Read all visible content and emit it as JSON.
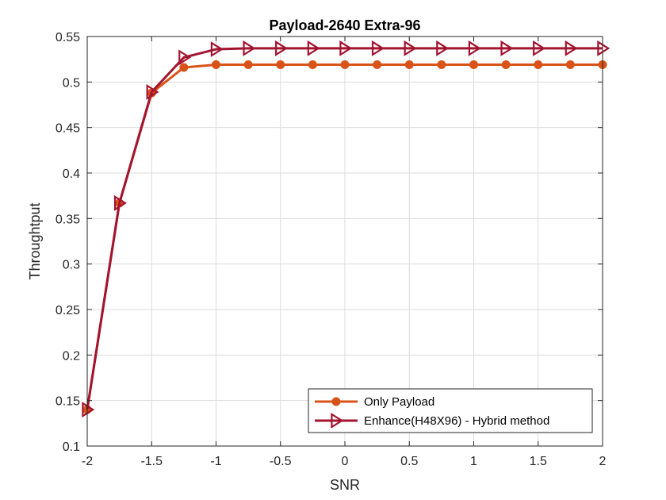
{
  "chart_data": {
    "type": "line",
    "title": "Payload-2640 Extra-96",
    "xlabel": "SNR",
    "ylabel": "Throughtput",
    "xlim": [
      -2,
      2
    ],
    "ylim": [
      0.1,
      0.55
    ],
    "xticks": [
      -2,
      -1.5,
      -1,
      -0.5,
      0,
      0.5,
      1,
      1.5,
      2
    ],
    "xtick_labels": [
      "-2",
      "-1.5",
      "-1",
      "-0.5",
      "0",
      "0.5",
      "1",
      "1.5",
      "2"
    ],
    "yticks": [
      0.1,
      0.15,
      0.2,
      0.25,
      0.3,
      0.35,
      0.4,
      0.45,
      0.5,
      0.55
    ],
    "ytick_labels": [
      "0.1",
      "0.15",
      "0.2",
      "0.25",
      "0.3",
      "0.35",
      "0.4",
      "0.45",
      "0.5",
      "0.55"
    ],
    "grid": true,
    "legend_position": "bottom-right",
    "x": [
      -2,
      -1.75,
      -1.5,
      -1.25,
      -1,
      -0.75,
      -0.5,
      -0.25,
      0,
      0.25,
      0.5,
      0.75,
      1,
      1.25,
      1.5,
      1.75,
      2
    ],
    "series": [
      {
        "name": "Only Payload",
        "color": "#D95319",
        "marker": "circle",
        "values": [
          0.14,
          0.367,
          0.488,
          0.516,
          0.519,
          0.519,
          0.519,
          0.519,
          0.519,
          0.519,
          0.519,
          0.519,
          0.519,
          0.519,
          0.519,
          0.519,
          0.519
        ]
      },
      {
        "name": "Enhance(H48X96) - Hybrid method",
        "color": "#A2142F",
        "marker": "triangle-right",
        "values": [
          0.14,
          0.367,
          0.489,
          0.527,
          0.536,
          0.537,
          0.537,
          0.537,
          0.537,
          0.537,
          0.537,
          0.537,
          0.537,
          0.537,
          0.537,
          0.537,
          0.537
        ]
      }
    ]
  }
}
